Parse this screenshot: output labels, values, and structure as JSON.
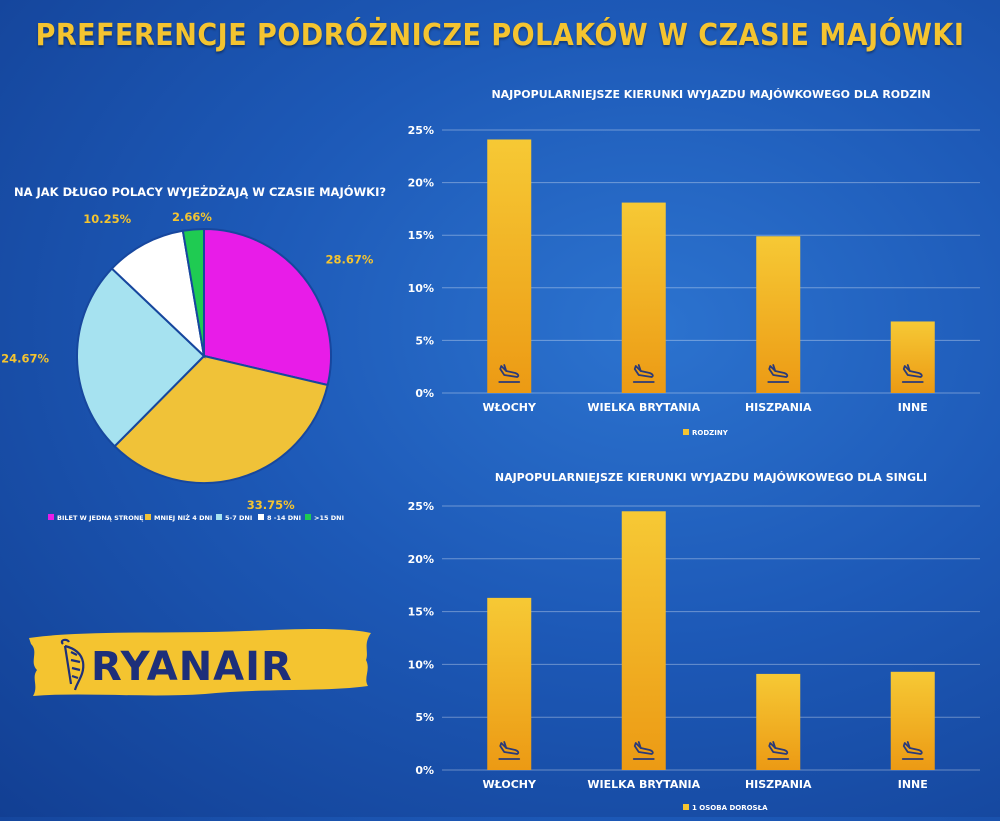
{
  "title": "PREFERENCJE PODRÓŻNICZE POLAKÓW W CZASIE MAJÓWKI",
  "logo_text": "RYANAIR",
  "colors": {
    "accent_yellow": "#f4c430",
    "bar_top": "#f6c935",
    "bar_bottom": "#ec9a14",
    "pie_magenta": "#e81ce8",
    "pie_yellow": "#f0c238",
    "pie_lightblue": "#a6e2f0",
    "pie_white": "#ffffff",
    "pie_green": "#1fcb52",
    "logo_navy": "#1d2f7a"
  },
  "chart_data": [
    {
      "id": "pie",
      "type": "pie",
      "title": "NA JAK DŁUGO POLACY WYJEŻDŻAJĄ W CZASIE MAJÓWKI?",
      "labels": [
        "BILET W JEDNĄ STRONĘ",
        "MNIEJ NIŻ 4 DNI",
        "5-7 DNI",
        "8 -14 DNI",
        ">15 DNI"
      ],
      "values": [
        28.67,
        33.75,
        24.67,
        10.25,
        2.66
      ],
      "value_labels": [
        "28.67%",
        "33.75%",
        "24.67%",
        "10.25%",
        "2.66%"
      ],
      "colors": [
        "#e81ce8",
        "#f0c238",
        "#a6e2f0",
        "#ffffff",
        "#1fcb52"
      ],
      "legend_position": "bottom"
    },
    {
      "id": "families",
      "type": "bar",
      "title": "NAJPOPULARNIEJSZE KIERUNKI WYJAZDU MAJÓWKOWEGO DLA RODZIN",
      "categories": [
        "WŁOCHY",
        "WIELKA BRYTANIA",
        "HISZPANIA",
        "INNE"
      ],
      "series": [
        {
          "name": "RODZINY",
          "values": [
            24.1,
            18.1,
            14.9,
            6.8
          ]
        }
      ],
      "ylim": [
        0,
        25
      ],
      "yticks": [
        "0%",
        "5%",
        "10%",
        "15%",
        "20%",
        "25%"
      ],
      "grid": true,
      "legend_position": "bottom",
      "bar_icon": "plane-landing-icon"
    },
    {
      "id": "singles",
      "type": "bar",
      "title": "NAJPOPULARNIEJSZE KIERUNKI WYJAZDU MAJÓWKOWEGO DLA SINGLI",
      "categories": [
        "WŁOCHY",
        "WIELKA BRYTANIA",
        "HISZPANIA",
        "INNE"
      ],
      "series": [
        {
          "name": "1 OSOBA DOROSŁA",
          "values": [
            16.3,
            24.5,
            9.1,
            9.3
          ]
        }
      ],
      "ylim": [
        0,
        25
      ],
      "yticks": [
        "0%",
        "5%",
        "10%",
        "15%",
        "20%",
        "25%"
      ],
      "grid": true,
      "legend_position": "bottom",
      "bar_icon": "plane-landing-icon"
    }
  ]
}
